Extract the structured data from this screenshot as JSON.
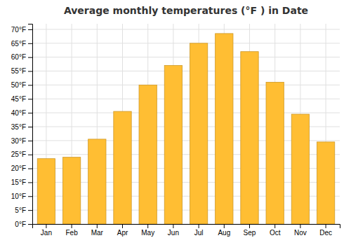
{
  "chart_data": {
    "type": "bar",
    "title": "Average monthly temperatures (°F ) in Date",
    "categories": [
      "Jan",
      "Feb",
      "Mar",
      "Apr",
      "May",
      "Jun",
      "Jul",
      "Aug",
      "Sep",
      "Oct",
      "Nov",
      "Dec"
    ],
    "values": [
      23.5,
      24.0,
      30.5,
      40.5,
      50.0,
      57.0,
      65.0,
      68.5,
      62.0,
      51.0,
      39.5,
      29.5
    ],
    "color": "#FFBE33",
    "ylim": [
      0,
      72
    ],
    "yticks": [
      {
        "value": 0,
        "label": "0°F"
      },
      {
        "value": 5,
        "label": "5°F"
      },
      {
        "value": 10,
        "label": "10°F"
      },
      {
        "value": 15,
        "label": "15°F"
      },
      {
        "value": 20,
        "label": "20°F"
      },
      {
        "value": 25,
        "label": "25°F"
      },
      {
        "value": 30,
        "label": "30°F"
      },
      {
        "value": 35,
        "label": "35°F"
      },
      {
        "value": 40,
        "label": "40°F"
      },
      {
        "value": 45,
        "label": "45°F"
      },
      {
        "value": 50,
        "label": "50°F"
      },
      {
        "value": 55,
        "label": "55°F"
      },
      {
        "value": 60,
        "label": "60°F"
      },
      {
        "value": 65,
        "label": "65°F"
      },
      {
        "value": 70,
        "label": "70°F"
      }
    ],
    "grid": true
  }
}
